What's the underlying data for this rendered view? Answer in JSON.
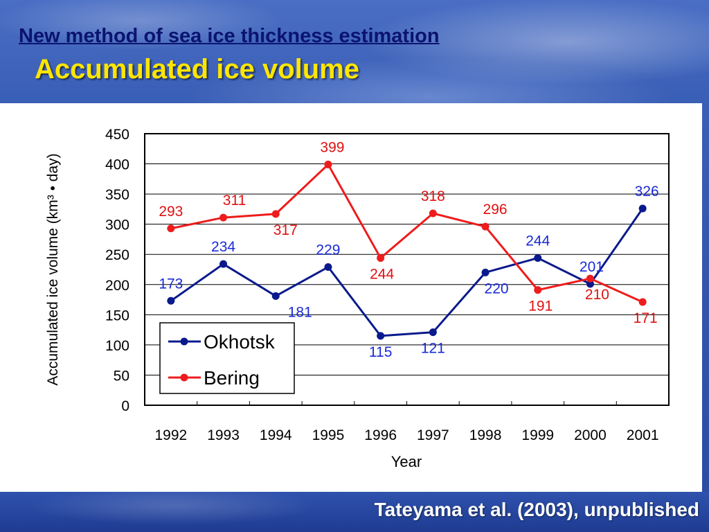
{
  "slide": {
    "title": "New method of sea ice thickness estimation",
    "subtitle": "Accumulated ice volume",
    "citation": "Tateyama et al. (2003), unpublished"
  },
  "chart_data": {
    "type": "line",
    "title": "",
    "xlabel": "Year",
    "ylabel": "Accumulated ice volume (km³ • day)",
    "ylim": [
      0,
      450
    ],
    "yticks": [
      0,
      50,
      100,
      150,
      200,
      250,
      300,
      350,
      400,
      450
    ],
    "categories": [
      "1992",
      "1993",
      "1994",
      "1995",
      "1996",
      "1997",
      "1998",
      "1999",
      "2000",
      "2001"
    ],
    "grid": "horizontal",
    "legend_position": "bottom-left",
    "series": [
      {
        "name": "Okhotsk",
        "color": "#0a1a8c",
        "label_color": "#1a2ad6",
        "values": [
          173,
          234,
          181,
          229,
          115,
          121,
          220,
          244,
          201,
          326
        ],
        "data_labels": [
          "173",
          "234",
          "181",
          "229",
          "115",
          "121",
          "220",
          "244",
          "201",
          "326"
        ]
      },
      {
        "name": "Bering",
        "color": "#ee1c1c",
        "label_color": "#e01010",
        "values": [
          293,
          311,
          317,
          399,
          244,
          318,
          296,
          191,
          210,
          171
        ],
        "data_labels": [
          "293",
          "311",
          "317",
          "399",
          "244",
          "318",
          "296",
          "191",
          "210",
          "171"
        ]
      }
    ]
  }
}
